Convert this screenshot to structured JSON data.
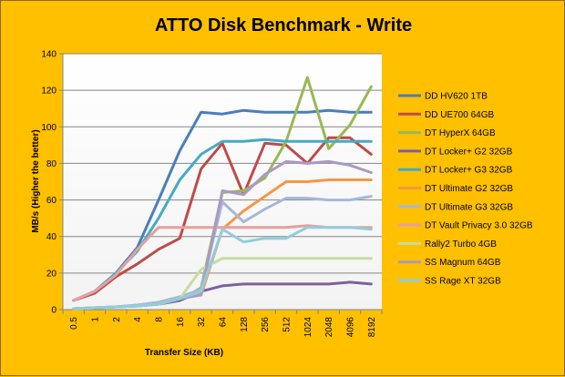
{
  "chart_data": {
    "type": "line",
    "title": "ATTO Disk Benchmark - Write",
    "xlabel": "Transfer Size (KB)",
    "ylabel": "MB/s (Higher the better)",
    "ylim": [
      0,
      140
    ],
    "ytick_step": 20,
    "grid": true,
    "legend": "right",
    "categories": [
      "0.5",
      "1",
      "2",
      "4",
      "8",
      "16",
      "32",
      "64",
      "128",
      "256",
      "512",
      "1024",
      "2048",
      "4096",
      "8192"
    ],
    "series": [
      {
        "name": "DD HV620 1TB",
        "color": "#4a7ebb",
        "values": [
          5,
          10,
          20,
          34,
          60,
          87,
          108,
          107,
          109,
          108,
          108,
          108,
          109,
          108,
          108
        ]
      },
      {
        "name": "DD UE700 64GB",
        "color": "#be4b48",
        "values": [
          5,
          9,
          18,
          25,
          33,
          39,
          77,
          91,
          63,
          91,
          90,
          80,
          94,
          94,
          85
        ]
      },
      {
        "name": "DT HyperX 64GB",
        "color": "#98b954",
        "values": [
          0.5,
          1,
          1.5,
          2,
          3,
          5,
          12,
          64,
          65,
          72,
          92,
          127,
          88,
          101,
          122
        ]
      },
      {
        "name": "DT Locker+ G2 32GB",
        "color": "#7d60a0",
        "values": [
          0.5,
          1,
          1.5,
          2,
          3,
          5,
          10,
          13,
          14,
          14,
          14,
          14,
          14,
          15,
          14
        ]
      },
      {
        "name": "DT Locker+ G3 32GB",
        "color": "#46aac4",
        "values": [
          5,
          10,
          20,
          32,
          50,
          71,
          85,
          92,
          92,
          93,
          92,
          92,
          92,
          92,
          92
        ]
      },
      {
        "name": "DT Ultimate  G2 32GB",
        "color": "#f79646",
        "values": [
          0.5,
          1,
          1.5,
          2.5,
          4,
          7,
          8,
          44,
          54,
          62,
          70,
          70,
          71,
          71,
          71
        ]
      },
      {
        "name": "DT Ultimate  G3 32GB",
        "color": "#a4b8db",
        "values": [
          0.5,
          1,
          1.5,
          2.5,
          4,
          7,
          11,
          59,
          48,
          55,
          61,
          61,
          60,
          60,
          62
        ]
      },
      {
        "name": "DT Vault Privacy 3.0 32GB",
        "color": "#e6a09e",
        "values": [
          5,
          10,
          19,
          33,
          45,
          45,
          45,
          45,
          45,
          45,
          45,
          46,
          45,
          45,
          45
        ]
      },
      {
        "name": "Rally2 Turbo 4GB",
        "color": "#c5dca0",
        "values": [
          0.5,
          1,
          1.5,
          2,
          3,
          6,
          22,
          28,
          28,
          28,
          28,
          28,
          28,
          28,
          28
        ]
      },
      {
        "name": "SS Magnum  64GB",
        "color": "#aa99c4",
        "values": [
          0.5,
          1,
          1.5,
          2,
          3,
          6,
          8,
          65,
          63,
          74,
          81,
          80,
          81,
          79,
          75
        ]
      },
      {
        "name": "SS Rage  XT 32GB",
        "color": "#92cddc",
        "values": [
          0.5,
          1,
          1.5,
          2,
          3,
          6,
          10,
          44,
          37,
          39,
          39,
          45,
          45,
          45,
          44
        ]
      }
    ]
  }
}
